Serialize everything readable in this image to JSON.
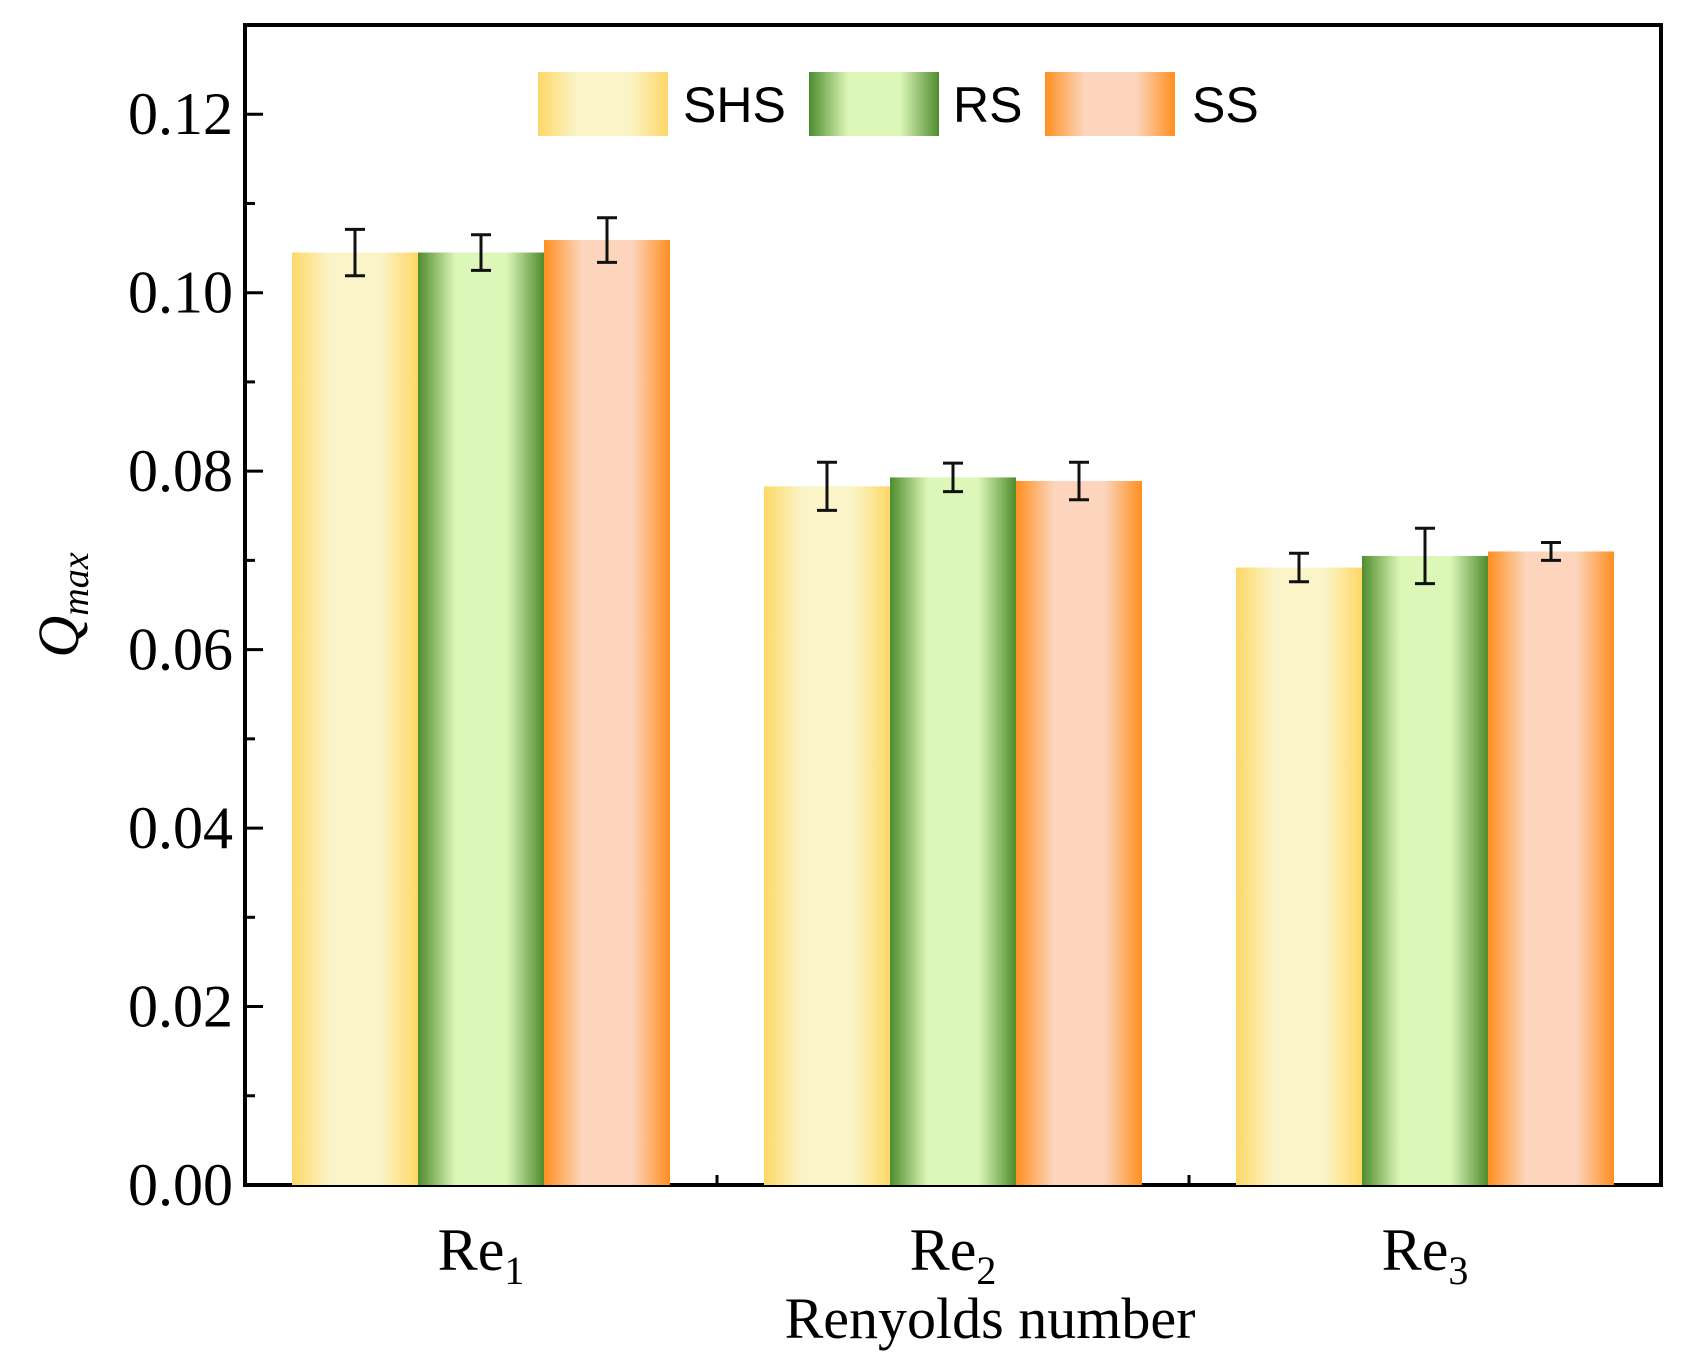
{
  "chart_data": {
    "type": "bar",
    "title": "",
    "xlabel": "Renyolds number",
    "ylabel": {
      "base": "Q",
      "subscript": "max"
    },
    "ylim": [
      0,
      0.13
    ],
    "yticks": [
      "0.00",
      "0.02",
      "0.04",
      "0.06",
      "0.08",
      "0.10",
      "0.12"
    ],
    "ytick_values": [
      0,
      0.02,
      0.04,
      0.06,
      0.08,
      0.1,
      0.12
    ],
    "categories": [
      {
        "base": "Re",
        "subscript": "1"
      },
      {
        "base": "Re",
        "subscript": "2"
      },
      {
        "base": "Re",
        "subscript": "3"
      }
    ],
    "series": [
      {
        "name": "SHS",
        "values": [
          0.1045,
          0.0783,
          0.0692
        ],
        "errors": [
          0.0026,
          0.0027,
          0.0016
        ],
        "color_edge": "#FDD866",
        "color_mid": "#FBF4C8"
      },
      {
        "name": "RS",
        "values": [
          0.1045,
          0.0793,
          0.0705
        ],
        "errors": [
          0.002,
          0.0016,
          0.0031
        ],
        "color_edge": "#4E8C2E",
        "color_mid": "#DDF7B8"
      },
      {
        "name": "SS",
        "values": [
          0.1059,
          0.0789,
          0.071
        ],
        "errors": [
          0.0025,
          0.0021,
          0.001
        ],
        "color_edge": "#FF8F1F",
        "color_mid": "#FCD5BC"
      }
    ],
    "legend_position": "top-center",
    "grid": false
  }
}
